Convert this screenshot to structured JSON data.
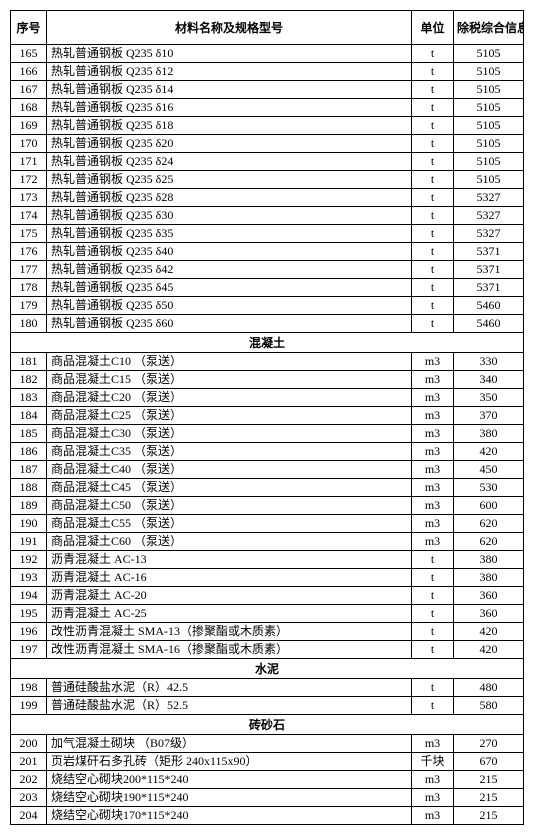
{
  "headers": {
    "seq": "序号",
    "name": "材料名称及规格型号",
    "unit": "单位",
    "price": "除税综合信息价"
  },
  "rows": [
    {
      "type": "data",
      "seq": "165",
      "name": "热轧普通钢板 Q235 δ10",
      "unit": "t",
      "price": "5105"
    },
    {
      "type": "data",
      "seq": "166",
      "name": "热轧普通钢板 Q235 δ12",
      "unit": "t",
      "price": "5105"
    },
    {
      "type": "data",
      "seq": "167",
      "name": "热轧普通钢板 Q235 δ14",
      "unit": "t",
      "price": "5105"
    },
    {
      "type": "data",
      "seq": "168",
      "name": "热轧普通钢板 Q235 δ16",
      "unit": "t",
      "price": "5105"
    },
    {
      "type": "data",
      "seq": "169",
      "name": "热轧普通钢板 Q235 δ18",
      "unit": "t",
      "price": "5105"
    },
    {
      "type": "data",
      "seq": "170",
      "name": "热轧普通钢板 Q235 δ20",
      "unit": "t",
      "price": "5105"
    },
    {
      "type": "data",
      "seq": "171",
      "name": "热轧普通钢板 Q235 δ24",
      "unit": "t",
      "price": "5105"
    },
    {
      "type": "data",
      "seq": "172",
      "name": "热轧普通钢板 Q235 δ25",
      "unit": "t",
      "price": "5105"
    },
    {
      "type": "data",
      "seq": "173",
      "name": "热轧普通钢板 Q235 δ28",
      "unit": "t",
      "price": "5327"
    },
    {
      "type": "data",
      "seq": "174",
      "name": "热轧普通钢板 Q235 δ30",
      "unit": "t",
      "price": "5327"
    },
    {
      "type": "data",
      "seq": "175",
      "name": "热轧普通钢板 Q235 δ35",
      "unit": "t",
      "price": "5327"
    },
    {
      "type": "data",
      "seq": "176",
      "name": "热轧普通钢板 Q235 δ40",
      "unit": "t",
      "price": "5371"
    },
    {
      "type": "data",
      "seq": "177",
      "name": "热轧普通钢板 Q235 δ42",
      "unit": "t",
      "price": "5371"
    },
    {
      "type": "data",
      "seq": "178",
      "name": "热轧普通钢板 Q235 δ45",
      "unit": "t",
      "price": "5371"
    },
    {
      "type": "data",
      "seq": "179",
      "name": "热轧普通钢板 Q235 δ50",
      "unit": "t",
      "price": "5460"
    },
    {
      "type": "data",
      "seq": "180",
      "name": "热轧普通钢板 Q235 δ60",
      "unit": "t",
      "price": "5460"
    },
    {
      "type": "section",
      "label": "混凝土"
    },
    {
      "type": "data",
      "seq": "181",
      "name": "商品混凝土C10 （泵送）",
      "unit": "m3",
      "price": "330"
    },
    {
      "type": "data",
      "seq": "182",
      "name": "商品混凝土C15 （泵送）",
      "unit": "m3",
      "price": "340"
    },
    {
      "type": "data",
      "seq": "183",
      "name": "商品混凝土C20 （泵送）",
      "unit": "m3",
      "price": "350"
    },
    {
      "type": "data",
      "seq": "184",
      "name": "商品混凝土C25 （泵送）",
      "unit": "m3",
      "price": "370"
    },
    {
      "type": "data",
      "seq": "185",
      "name": "商品混凝土C30 （泵送）",
      "unit": "m3",
      "price": "380"
    },
    {
      "type": "data",
      "seq": "186",
      "name": "商品混凝土C35 （泵送）",
      "unit": "m3",
      "price": "420"
    },
    {
      "type": "data",
      "seq": "187",
      "name": "商品混凝土C40 （泵送）",
      "unit": "m3",
      "price": "450"
    },
    {
      "type": "data",
      "seq": "188",
      "name": "商品混凝土C45 （泵送）",
      "unit": "m3",
      "price": "530"
    },
    {
      "type": "data",
      "seq": "189",
      "name": "商品混凝土C50 （泵送）",
      "unit": "m3",
      "price": "600"
    },
    {
      "type": "data",
      "seq": "190",
      "name": "商品混凝土C55 （泵送）",
      "unit": "m3",
      "price": "620"
    },
    {
      "type": "data",
      "seq": "191",
      "name": "商品混凝土C60 （泵送）",
      "unit": "m3",
      "price": "620"
    },
    {
      "type": "data",
      "seq": "192",
      "name": "沥青混凝土  AC-13",
      "unit": "t",
      "price": "380"
    },
    {
      "type": "data",
      "seq": "193",
      "name": "沥青混凝土  AC-16",
      "unit": "t",
      "price": "380"
    },
    {
      "type": "data",
      "seq": "194",
      "name": "沥青混凝土  AC-20",
      "unit": "t",
      "price": "360"
    },
    {
      "type": "data",
      "seq": "195",
      "name": "沥青混凝土  AC-25",
      "unit": "t",
      "price": "360"
    },
    {
      "type": "data",
      "seq": "196",
      "name": "改性沥青混凝土 SMA-13（掺聚酯或木质素）",
      "unit": "t",
      "price": "420"
    },
    {
      "type": "data",
      "seq": "197",
      "name": "改性沥青混凝土 SMA-16（掺聚酯或木质素）",
      "unit": "t",
      "price": "420"
    },
    {
      "type": "section",
      "label": "水泥"
    },
    {
      "type": "data",
      "seq": "198",
      "name": "普通硅酸盐水泥（R）42.5",
      "unit": "t",
      "price": "480"
    },
    {
      "type": "data",
      "seq": "199",
      "name": "普通硅酸盐水泥（R）52.5",
      "unit": "t",
      "price": "580"
    },
    {
      "type": "section",
      "label": "砖砂石"
    },
    {
      "type": "data",
      "seq": "200",
      "name": "加气混凝土砌块 （B07级）",
      "unit": "m3",
      "price": "270"
    },
    {
      "type": "data",
      "seq": "201",
      "name": "页岩煤矸石多孔砖（矩形 240x115x90）",
      "unit": "千块",
      "price": "670"
    },
    {
      "type": "data",
      "seq": "202",
      "name": "烧结空心砌块200*115*240",
      "unit": "m3",
      "price": "215"
    },
    {
      "type": "data",
      "seq": "203",
      "name": "烧结空心砌块190*115*240",
      "unit": "m3",
      "price": "215"
    },
    {
      "type": "data",
      "seq": "204",
      "name": "烧结空心砌块170*115*240",
      "unit": "m3",
      "price": "215"
    }
  ]
}
